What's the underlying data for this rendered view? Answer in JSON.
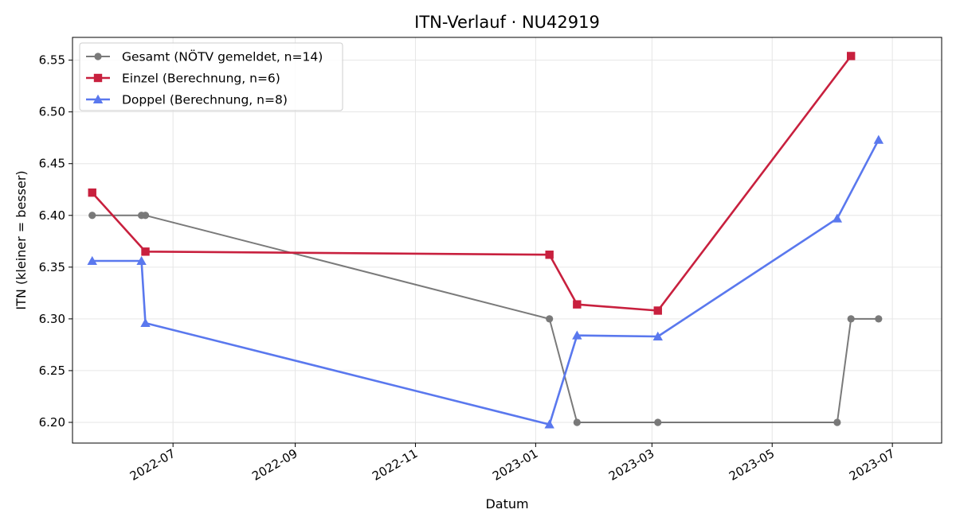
{
  "chart_data": {
    "type": "line",
    "title": "ITN-Verlauf · NU42919",
    "xlabel": "Datum",
    "ylabel": "ITN  (kleiner = besser)",
    "x_ticks": [
      "2022-07",
      "2022-09",
      "2022-11",
      "2023-01",
      "2023-03",
      "2023-05",
      "2023-07"
    ],
    "y_ticks": [
      "6.20",
      "6.25",
      "6.30",
      "6.35",
      "6.40",
      "6.45",
      "6.50",
      "6.55"
    ],
    "xlim": [
      "2022-05-11",
      "2023-07-26"
    ],
    "ylim": [
      6.18,
      6.572
    ],
    "grid": true,
    "legend_position": "top-left",
    "series": [
      {
        "name": "Gesamt (NÖTV gemeldet, n=14)",
        "color": "#555555",
        "marker": "circle",
        "points": [
          {
            "x": "2022-05-21",
            "y": 6.4
          },
          {
            "x": "2022-06-15",
            "y": 6.4
          },
          {
            "x": "2022-06-17",
            "y": 6.4
          },
          {
            "x": "2023-01-08",
            "y": 6.3
          },
          {
            "x": "2023-01-22",
            "y": 6.2
          },
          {
            "x": "2023-03-04",
            "y": 6.2
          },
          {
            "x": "2023-06-03",
            "y": 6.2
          },
          {
            "x": "2023-06-10",
            "y": 6.3
          },
          {
            "x": "2023-06-24",
            "y": 6.3
          }
        ]
      },
      {
        "name": "Einzel (Berechnung, n=6)",
        "color": "#c8203e",
        "marker": "square",
        "points": [
          {
            "x": "2022-05-21",
            "y": 6.422
          },
          {
            "x": "2022-06-17",
            "y": 6.365
          },
          {
            "x": "2023-01-08",
            "y": 6.362
          },
          {
            "x": "2023-01-22",
            "y": 6.314
          },
          {
            "x": "2023-03-04",
            "y": 6.308
          },
          {
            "x": "2023-06-10",
            "y": 6.554
          }
        ]
      },
      {
        "name": "Doppel (Berechnung, n=8)",
        "color": "#5a78ee",
        "marker": "triangle",
        "points": [
          {
            "x": "2022-05-21",
            "y": 6.356
          },
          {
            "x": "2022-06-15",
            "y": 6.356
          },
          {
            "x": "2022-06-17",
            "y": 6.296
          },
          {
            "x": "2023-01-08",
            "y": 6.198
          },
          {
            "x": "2023-01-22",
            "y": 6.284
          },
          {
            "x": "2023-03-04",
            "y": 6.283
          },
          {
            "x": "2023-06-03",
            "y": 6.397
          },
          {
            "x": "2023-06-24",
            "y": 6.473
          }
        ]
      }
    ]
  }
}
